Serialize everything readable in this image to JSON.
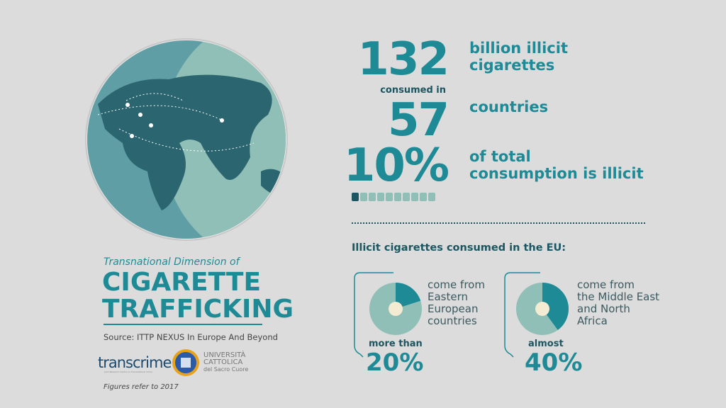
{
  "title": {
    "subtitle": "Transnational Dimension of",
    "line1": "CIGARETTE",
    "line2": "TRAFFICKING",
    "source": "Source: ITTP NEXUS In Europe And Beyond",
    "note": "Figures refer to 2017"
  },
  "logos": {
    "transcrime": "transcrime",
    "transcrime_sub": "Joint Research Centre on Transnational Crime",
    "ucsc_line1": "UNIVERSITÀ",
    "ucsc_line2": "CATTOLICA",
    "ucsc_line3": "del Sacro Cuore"
  },
  "stats": {
    "cigarettes": {
      "value": "132",
      "label_line1": "billion illicit",
      "label_line2": "cigarettes"
    },
    "connector": "consumed in",
    "countries": {
      "value": "57",
      "label": "countries"
    },
    "share": {
      "value": "10%",
      "label_line1": "of total",
      "label_line2": "consumption is illicit",
      "icons_total": 10,
      "icons_highlighted": 1
    }
  },
  "eu": {
    "heading": "Illicit cigarettes consumed in the EU:",
    "items": [
      {
        "desc_lines": [
          "come from",
          "Eastern",
          "European",
          "countries"
        ],
        "qualifier": "more than",
        "value": "20%",
        "percent": 20
      },
      {
        "desc_lines": [
          "come from",
          "the Middle East",
          "and North",
          "Africa"
        ],
        "qualifier": "almost",
        "value": "40%",
        "percent": 40
      }
    ]
  },
  "colors": {
    "background": "#dcdcdc",
    "accent": "#1e8a95",
    "dark": "#1c5661",
    "pie_light": "#8fbfb6",
    "pie_center": "#f3ecd3"
  }
}
